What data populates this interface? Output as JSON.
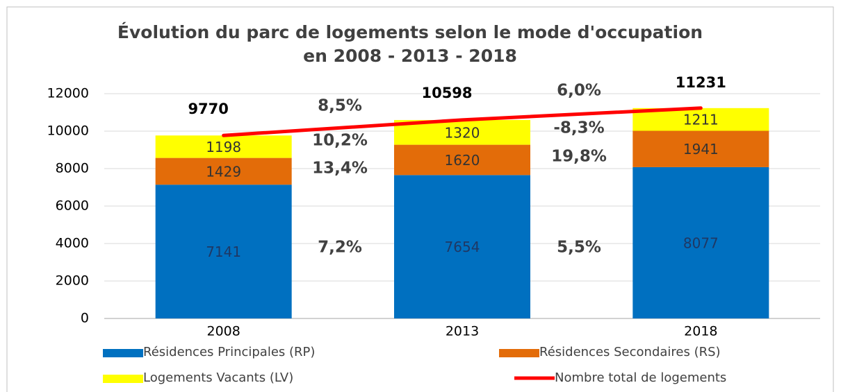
{
  "chart_data": {
    "type": "bar",
    "title": "Évolution du parc de logements selon le mode d'occupation",
    "subtitle": "en 2008 - 2013 - 2018",
    "categories": [
      "2008",
      "2013",
      "2018"
    ],
    "series": [
      {
        "name": "Résidences Principales (RP)",
        "color": "#0070c0",
        "values": [
          7141,
          7654,
          8077
        ]
      },
      {
        "name": "Résidences Secondaires (RS)",
        "color": "#e36c09",
        "values": [
          1429,
          1620,
          1941
        ]
      },
      {
        "name": "Logements Vacants (LV)",
        "color": "#ffff00",
        "values": [
          1198,
          1320,
          1211
        ]
      },
      {
        "name": "Nombre total de logements",
        "color": "#ff0000",
        "type": "line",
        "values": [
          9770,
          10598,
          11231
        ]
      }
    ],
    "ylim": [
      0,
      12000
    ],
    "yticks": [
      0,
      2000,
      4000,
      6000,
      8000,
      10000,
      12000
    ],
    "grid": true,
    "annotations": [
      "8,5%",
      "10,2%",
      "13,4%",
      "7,2%",
      "6,0%",
      "-8,3%",
      "19,8%",
      "5,5%"
    ]
  }
}
